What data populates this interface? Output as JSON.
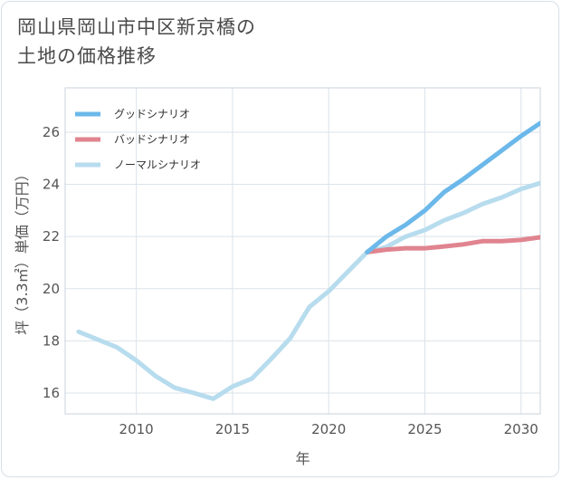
{
  "title_lines": [
    "岡山県岡山市中区新京橋の",
    "土地の価格推移"
  ],
  "chart_data": {
    "type": "line",
    "xlabel": "年",
    "ylabel": "坪（3.3㎡）単価（万円）",
    "xlim": [
      2006.3,
      2031
    ],
    "ylim": [
      15.2,
      27.7
    ],
    "xticks": [
      2010,
      2015,
      2020,
      2025,
      2030
    ],
    "yticks": [
      16,
      18,
      20,
      22,
      24,
      26
    ],
    "grid": true,
    "legend_position": "top-left",
    "series": [
      {
        "name": "グッドシナリオ",
        "color": "#6cb8ea",
        "x": [
          2022,
          2023,
          2024,
          2025,
          2026,
          2027,
          2028,
          2029,
          2030,
          2031
        ],
        "values": [
          21.4,
          22.0,
          22.45,
          23.0,
          23.7,
          24.2,
          24.75,
          25.3,
          25.85,
          26.35
        ]
      },
      {
        "name": "バッドシナリオ",
        "color": "#e0848f",
        "x": [
          2022,
          2023,
          2024,
          2025,
          2026,
          2027,
          2028,
          2029,
          2030,
          2031
        ],
        "values": [
          21.4,
          21.5,
          21.55,
          21.55,
          21.62,
          21.7,
          21.82,
          21.82,
          21.87,
          21.97
        ]
      },
      {
        "name": "ノーマルシナリオ",
        "color": "#b7dcee",
        "x": [
          2007,
          2008,
          2009,
          2010,
          2011,
          2012,
          2013,
          2014,
          2015,
          2016,
          2017,
          2018,
          2019,
          2020,
          2021,
          2022,
          2023,
          2024,
          2025,
          2026,
          2027,
          2028,
          2029,
          2030,
          2031
        ],
        "values": [
          18.35,
          18.05,
          17.75,
          17.25,
          16.65,
          16.2,
          16.0,
          15.78,
          16.25,
          16.55,
          17.3,
          18.1,
          19.3,
          19.9,
          20.65,
          21.4,
          21.6,
          22.0,
          22.25,
          22.62,
          22.9,
          23.25,
          23.5,
          23.82,
          24.05
        ]
      }
    ]
  }
}
